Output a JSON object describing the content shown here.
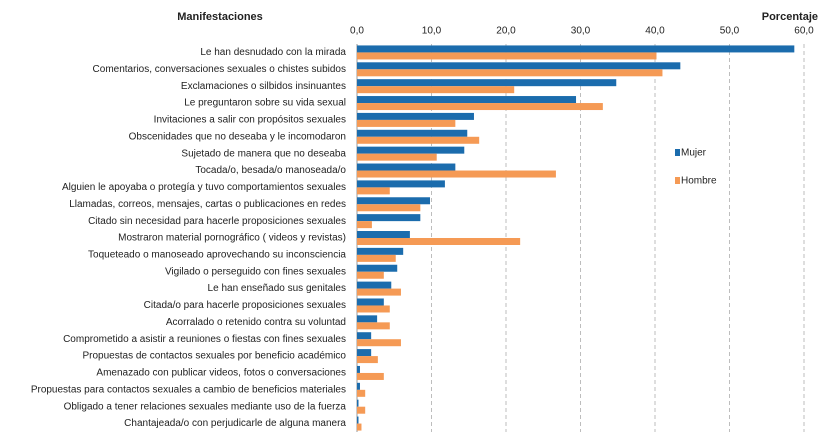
{
  "chart_data": {
    "type": "hbar",
    "xlabel": "Porcentaje",
    "ylabel": "Manifestaciones",
    "categories": [
      "Le han desnudado con la mirada",
      "Comentarios, conversaciones sexuales o chistes subidos",
      "Exclamaciones o silbidos insinuantes",
      "Le preguntaron sobre su vida sexual",
      "Invitaciones a salir con propósitos sexuales",
      "Obscenidades que no deseaba y le incomodaron",
      "Sujetado de manera que no deseaba",
      "Tocada/o, besada/o manoseada/o",
      "Alguien le apoyaba o protegía y tuvo comportamientos sexuales",
      "Llamadas, correos, mensajes, cartas o publicaciones en redes",
      "Citado sin necesidad para hacerle proposiciones sexuales",
      "Mostraron material pornográfico ( videos y revistas)",
      "Toqueteado o manoseado aprovechando su inconsciencia",
      "Vigilado o perseguido con fines sexuales",
      "Le han enseñado sus genitales",
      "Citada/o para hacerle proposiciones sexuales",
      "Acorralado o retenido contra su voluntad",
      "Comprometido a asistir a reuniones o fiestas con fines sexuales",
      "Propuestas de contactos sexuales por beneficio académico",
      "Amenazado con  publicar videos, fotos o conversaciones",
      "Propuestas para contactos sexuales a cambio de beneficios materiales",
      "Obligado a tener relaciones sexuales mediante uso de la fuerza",
      "Chantajeada/o con perjudicarle de alguna manera"
    ],
    "series": [
      {
        "name": "Mujer",
        "color": "#1b6cad",
        "values": [
          58.7,
          43.4,
          34.8,
          29.4,
          15.7,
          14.8,
          14.4,
          13.2,
          11.8,
          9.8,
          8.5,
          7.1,
          6.2,
          5.4,
          4.6,
          3.6,
          2.7,
          1.9,
          1.9,
          0.4,
          0.4,
          0.2,
          0.2
        ]
      },
      {
        "name": "Hombre",
        "color": "#f59a55",
        "values": [
          40.2,
          41.0,
          21.1,
          33.0,
          13.2,
          16.4,
          10.7,
          26.7,
          4.4,
          8.5,
          2.0,
          21.9,
          5.2,
          3.6,
          5.9,
          4.4,
          4.4,
          5.9,
          2.8,
          3.6,
          1.1,
          1.1,
          0.6
        ]
      }
    ],
    "xlim": [
      0,
      60
    ],
    "xticks": [
      {
        "value": 0,
        "label": "0,0"
      },
      {
        "value": 10,
        "label": "10,0"
      },
      {
        "value": 20,
        "label": "20,0"
      },
      {
        "value": 30,
        "label": "30,0"
      },
      {
        "value": 40,
        "label": "40,0"
      },
      {
        "value": 50,
        "label": "50,0"
      },
      {
        "value": 60,
        "label": "60,0"
      }
    ],
    "grid": true,
    "legend": "right"
  }
}
